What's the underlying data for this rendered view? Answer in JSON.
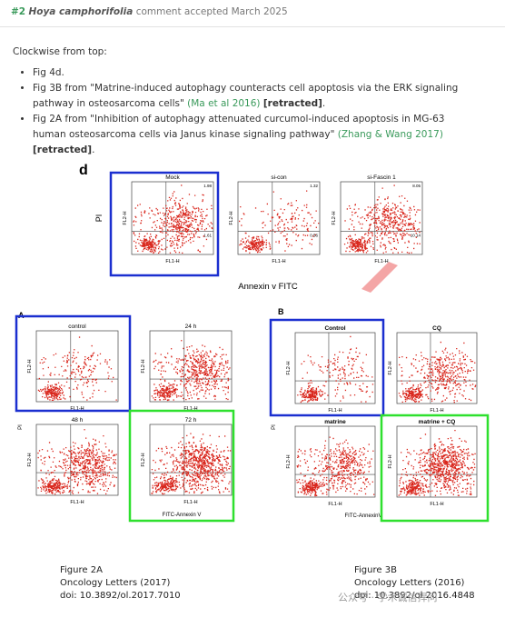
{
  "header": {
    "number": "#2",
    "species": "Hoya camphorifolia",
    "text": "comment accepted March 2025"
  },
  "intro": "Clockwise from top:",
  "bullets": [
    {
      "text": "Fig 4d."
    },
    {
      "text": "Fig 3B from \"Matrine-induced autophagy counteracts cell apoptosis via the ERK signaling pathway in osteosarcoma cells\"",
      "link": "(Ma et al 2016)",
      "status": "[retracted]",
      "end": "."
    },
    {
      "text": "Fig 2A from \"Inhibition of autophagy attenuated curcumol-induced apoptosis in MG-63 human osteosarcoma cells via Janus kinase signaling pathway\"",
      "link": "(Zhang & Wang 2017)",
      "status": "[retracted]",
      "end": "."
    }
  ],
  "plot_axes": {
    "y": "FL2-H",
    "x": "FL1-H"
  },
  "figure_d": {
    "label": "d",
    "y_label": "PI",
    "x_label": "Annexin v FITC",
    "panels": [
      {
        "title": "Mock",
        "values": [
          1.98,
          1.61
        ]
      },
      {
        "title": "si-con",
        "values": [
          1.32,
          0.56
        ]
      },
      {
        "title": "si-Fascin 1",
        "values": [
          8.05,
          10.14
        ]
      }
    ]
  },
  "figure_2a": {
    "label": "A",
    "y_label": "PI",
    "x_label": "FITC-Annexin V",
    "panels": [
      "control",
      "24 h",
      "48 h",
      "72 h"
    ]
  },
  "figure_3b": {
    "label": "B",
    "y_label": "PI",
    "x_label": "FITC-AnnexinV",
    "panels": [
      "Control",
      "CQ",
      "matrine",
      "matrine + CQ"
    ]
  },
  "captions": [
    {
      "figure": "Figure 2A",
      "journal": "Oncology Letters (2017)",
      "doi": "doi: 10.3892/ol.2017.7010"
    },
    {
      "figure": "Figure 3B",
      "journal": "Oncology Letters (2016)",
      "doi": "doi: 10.3892/ol.2016.4848"
    }
  ],
  "watermark": "公众号 · 学术诚信捍问"
}
